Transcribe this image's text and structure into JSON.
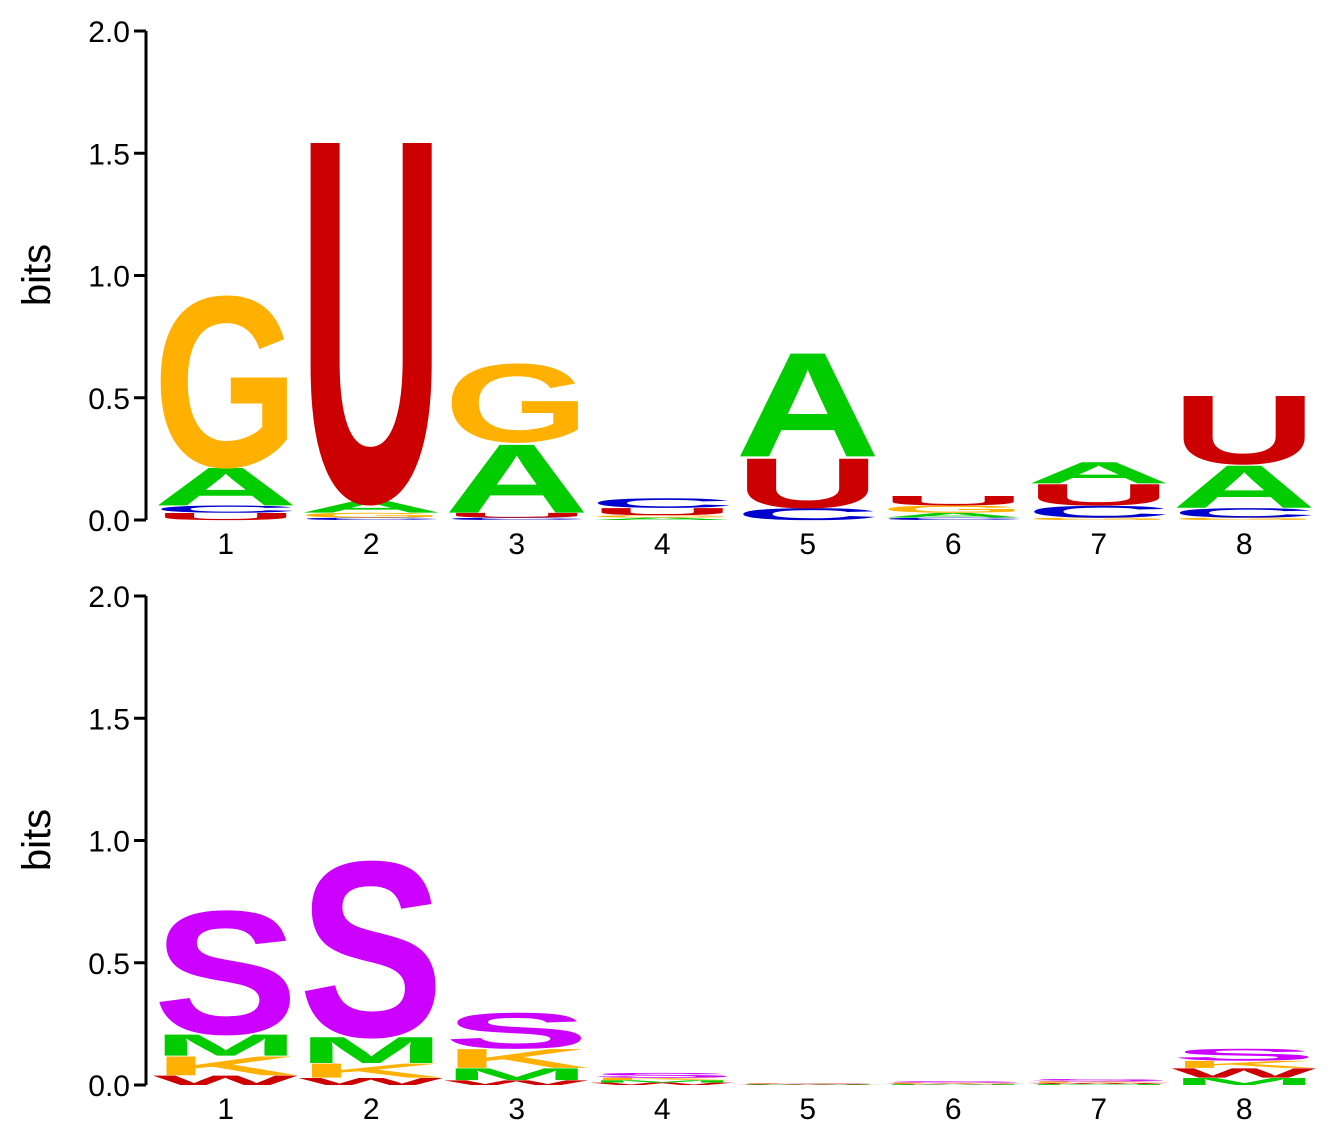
{
  "colors": {
    "A": "#00cc00",
    "C": "#0000cc",
    "G": "#ffb000",
    "U": "#cc0000",
    "S": "#cc00ff",
    "M": "#00cc00",
    "K": "#ffb000",
    "W": "#cc0000"
  },
  "chart_data": [
    {
      "type": "sequence-logo",
      "ylabel": "bits",
      "ylim": [
        0,
        2.0
      ],
      "yticks": [
        "0.0",
        "0.5",
        "1.0",
        "1.5",
        "2.0"
      ],
      "positions": [
        {
          "label": "1",
          "stack": [
            {
              "letter": "U",
              "bits": 0.03
            },
            {
              "letter": "C",
              "bits": 0.03
            },
            {
              "letter": "A",
              "bits": 0.16
            },
            {
              "letter": "G",
              "bits": 0.72
            }
          ]
        },
        {
          "label": "2",
          "stack": [
            {
              "letter": "C",
              "bits": 0.01
            },
            {
              "letter": "G",
              "bits": 0.02
            },
            {
              "letter": "A",
              "bits": 0.05
            },
            {
              "letter": "U",
              "bits": 1.53
            }
          ]
        },
        {
          "label": "3",
          "stack": [
            {
              "letter": "C",
              "bits": 0.01
            },
            {
              "letter": "U",
              "bits": 0.02
            },
            {
              "letter": "A",
              "bits": 0.29
            },
            {
              "letter": "G",
              "bits": 0.33
            }
          ]
        },
        {
          "label": "4",
          "stack": [
            {
              "letter": "A",
              "bits": 0.01
            },
            {
              "letter": "G",
              "bits": 0.01
            },
            {
              "letter": "U",
              "bits": 0.03
            },
            {
              "letter": "C",
              "bits": 0.04
            }
          ]
        },
        {
          "label": "5",
          "stack": [
            {
              "letter": "C",
              "bits": 0.05
            },
            {
              "letter": "U",
              "bits": 0.21
            },
            {
              "letter": "A",
              "bits": 0.44
            }
          ]
        },
        {
          "label": "6",
          "stack": [
            {
              "letter": "C",
              "bits": 0.01
            },
            {
              "letter": "A",
              "bits": 0.02
            },
            {
              "letter": "G",
              "bits": 0.03
            },
            {
              "letter": "U",
              "bits": 0.04
            }
          ]
        },
        {
          "label": "7",
          "stack": [
            {
              "letter": "G",
              "bits": 0.01
            },
            {
              "letter": "C",
              "bits": 0.05
            },
            {
              "letter": "U",
              "bits": 0.09
            },
            {
              "letter": "A",
              "bits": 0.09
            }
          ]
        },
        {
          "label": "8",
          "stack": [
            {
              "letter": "G",
              "bits": 0.01
            },
            {
              "letter": "C",
              "bits": 0.04
            },
            {
              "letter": "A",
              "bits": 0.18
            },
            {
              "letter": "U",
              "bits": 0.29
            }
          ]
        }
      ]
    },
    {
      "type": "sequence-logo",
      "ylabel": "bits",
      "ylim": [
        0,
        2.0
      ],
      "yticks": [
        "0.0",
        "0.5",
        "1.0",
        "1.5",
        "2.0"
      ],
      "positions": [
        {
          "label": "1",
          "stack": [
            {
              "letter": "W",
              "bits": 0.04
            },
            {
              "letter": "K",
              "bits": 0.08
            },
            {
              "letter": "M",
              "bits": 0.09
            },
            {
              "letter": "S",
              "bits": 0.52
            }
          ]
        },
        {
          "label": "2",
          "stack": [
            {
              "letter": "W",
              "bits": 0.03
            },
            {
              "letter": "K",
              "bits": 0.06
            },
            {
              "letter": "M",
              "bits": 0.11
            },
            {
              "letter": "S",
              "bits": 0.74
            }
          ]
        },
        {
          "label": "3",
          "stack": [
            {
              "letter": "W",
              "bits": 0.02
            },
            {
              "letter": "M",
              "bits": 0.05
            },
            {
              "letter": "K",
              "bits": 0.08
            },
            {
              "letter": "S",
              "bits": 0.15
            }
          ]
        },
        {
          "label": "4",
          "stack": [
            {
              "letter": "W",
              "bits": 0.01
            },
            {
              "letter": "M",
              "bits": 0.01
            },
            {
              "letter": "K",
              "bits": 0.01
            },
            {
              "letter": "S",
              "bits": 0.02
            }
          ]
        },
        {
          "label": "5",
          "stack": [
            {
              "letter": "M",
              "bits": 0.002
            },
            {
              "letter": "W",
              "bits": 0.002
            },
            {
              "letter": "K",
              "bits": 0.002
            },
            {
              "letter": "S",
              "bits": 0.002
            }
          ]
        },
        {
          "label": "6",
          "stack": [
            {
              "letter": "M",
              "bits": 0.003
            },
            {
              "letter": "W",
              "bits": 0.003
            },
            {
              "letter": "K",
              "bits": 0.004
            },
            {
              "letter": "S",
              "bits": 0.006
            }
          ]
        },
        {
          "label": "7",
          "stack": [
            {
              "letter": "M",
              "bits": 0.004
            },
            {
              "letter": "W",
              "bits": 0.005
            },
            {
              "letter": "K",
              "bits": 0.006
            },
            {
              "letter": "S",
              "bits": 0.01
            }
          ]
        },
        {
          "label": "8",
          "stack": [
            {
              "letter": "M",
              "bits": 0.03
            },
            {
              "letter": "W",
              "bits": 0.04
            },
            {
              "letter": "K",
              "bits": 0.03
            },
            {
              "letter": "S",
              "bits": 0.05
            }
          ]
        }
      ]
    }
  ]
}
